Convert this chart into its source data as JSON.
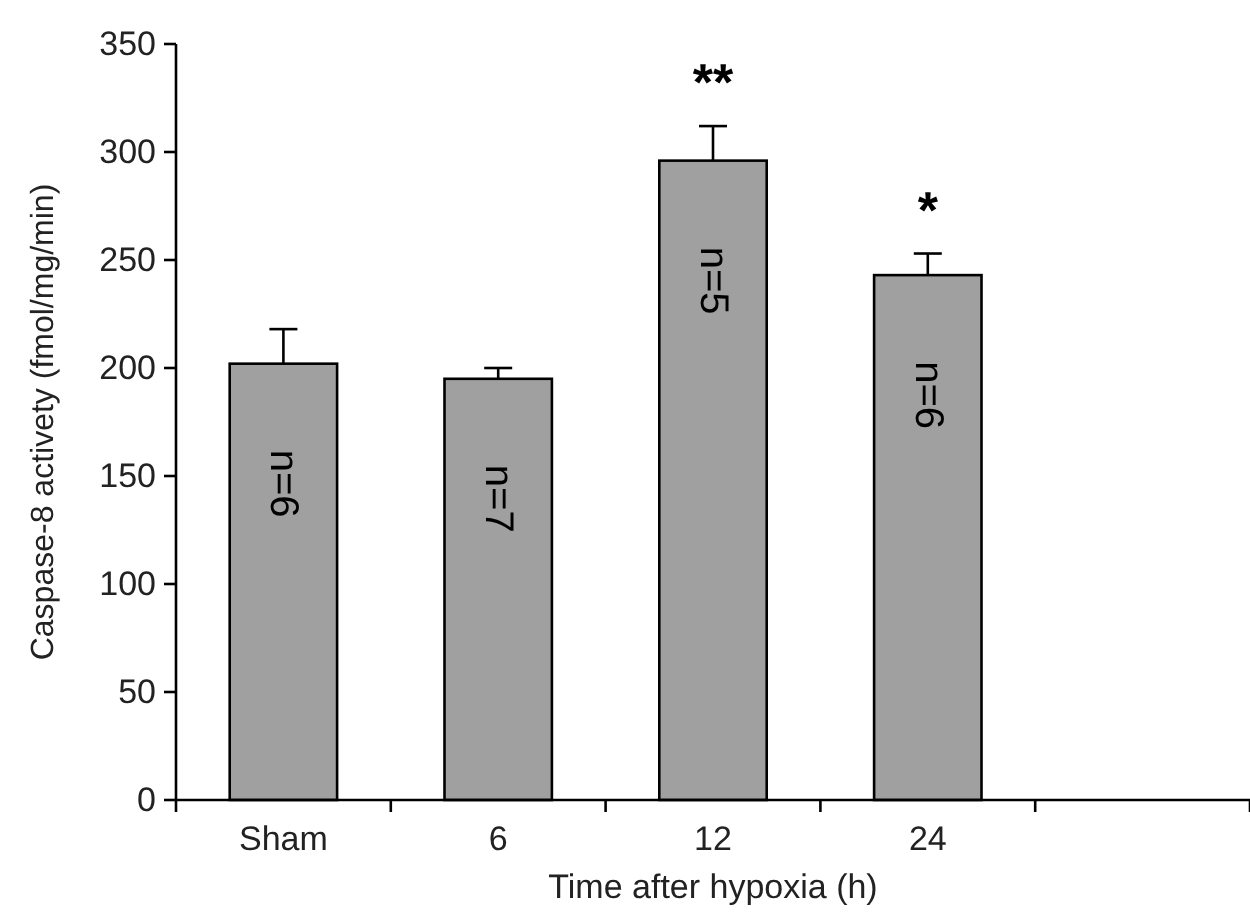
{
  "chart_data": {
    "type": "bar",
    "xlabel": "Time after hypoxia (h)",
    "ylabel": "Caspase-8 activety (fmol/mg/min)",
    "categories": [
      "Sham",
      "6",
      "12",
      "24"
    ],
    "values": [
      202,
      195,
      296,
      243
    ],
    "errors": [
      [
        202,
        218
      ],
      [
        195,
        200
      ],
      [
        296,
        312
      ],
      [
        243,
        253
      ]
    ],
    "color": "#a0a0a0",
    "ylim": [
      0,
      350
    ],
    "yticks": [
      0,
      50,
      100,
      150,
      200,
      250,
      300,
      350
    ],
    "grid": false,
    "annotations": [
      "n=6",
      "n=7",
      "n=5",
      "n=6",
      "**",
      "*"
    ]
  }
}
